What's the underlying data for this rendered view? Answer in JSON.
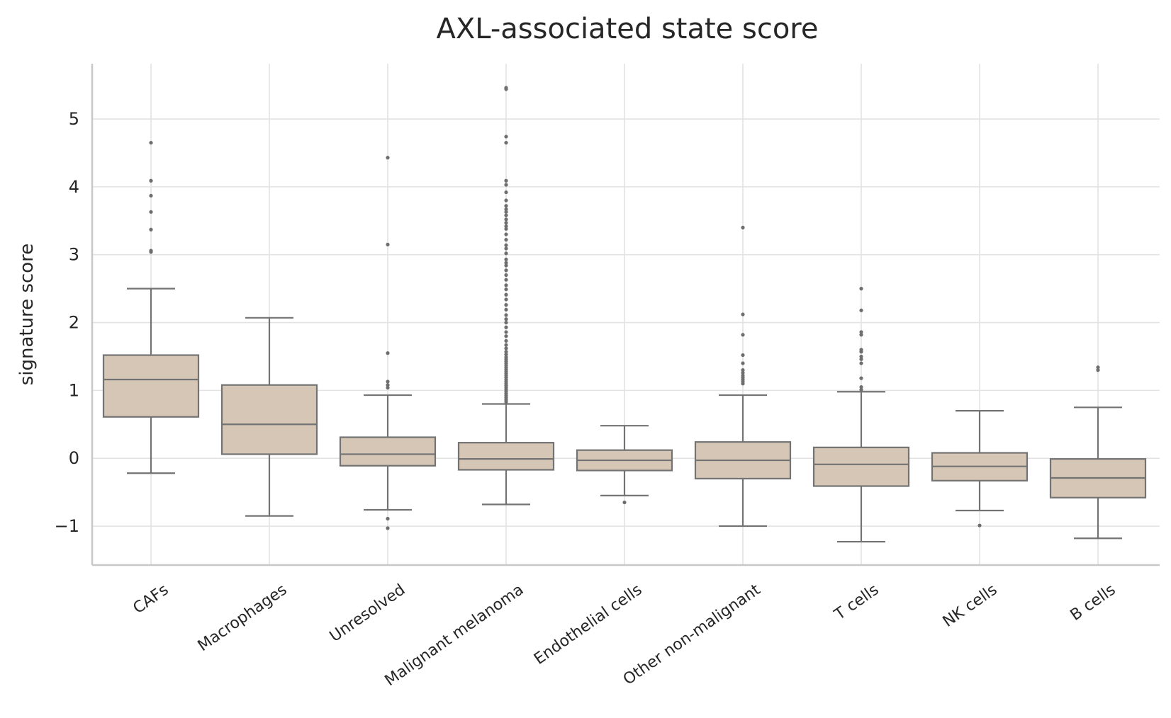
{
  "chart_data": {
    "type": "box",
    "title": "AXL-associated state score",
    "xlabel": "",
    "ylabel": "signature score",
    "ylim": [
      -1.55,
      5.8
    ],
    "yticks": [
      -1,
      0,
      1,
      2,
      3,
      4,
      5
    ],
    "ytick_labels": [
      "−1",
      "0",
      "1",
      "2",
      "3",
      "4",
      "5"
    ],
    "grid": true,
    "colors": {
      "box_fill": "#d5c6b5",
      "box_edge": "#737373",
      "grid": "#e3e3e3",
      "axis": "#c8c8c8",
      "flier": "#6e6e6e"
    },
    "categories": [
      "CAFs",
      "Macrophages",
      "Unresolved",
      "Malignant melanoma",
      "Endothelial cells",
      "Other non-malignant",
      "T cells",
      "NK cells",
      "B cells"
    ],
    "boxes": [
      {
        "category": "CAFs",
        "whislo": -0.22,
        "q1": 0.61,
        "med": 1.16,
        "q3": 1.52,
        "whishi": 2.5,
        "fliers": [
          4.65,
          4.09,
          3.87,
          3.63,
          3.37,
          3.06,
          3.04
        ]
      },
      {
        "category": "Macrophages",
        "whislo": -0.85,
        "q1": 0.06,
        "med": 0.5,
        "q3": 1.08,
        "whishi": 2.07,
        "fliers": []
      },
      {
        "category": "Unresolved",
        "whislo": -0.76,
        "q1": -0.11,
        "med": 0.06,
        "q3": 0.31,
        "whishi": 0.93,
        "fliers": [
          4.43,
          3.15,
          1.55,
          1.13,
          1.08,
          1.04,
          -0.89,
          -1.03
        ]
      },
      {
        "category": "Malignant melanoma",
        "whislo": -0.68,
        "q1": -0.17,
        "med": -0.01,
        "q3": 0.23,
        "whishi": 0.8,
        "fliers": [
          5.46,
          5.44,
          4.74,
          4.65,
          4.09,
          4.03,
          3.92,
          3.8,
          3.72,
          3.67,
          3.63,
          3.58,
          3.52,
          3.47,
          3.42,
          3.38,
          3.3,
          3.22,
          3.14,
          3.09,
          3.02,
          2.93,
          2.88,
          2.84,
          2.77,
          2.7,
          2.63,
          2.55,
          2.49,
          2.41,
          2.34,
          2.26,
          2.19,
          2.11,
          2.05,
          2.0,
          1.93,
          1.86,
          1.8,
          1.73,
          1.67,
          1.62,
          1.57,
          1.53,
          1.49,
          1.46,
          1.43,
          1.4,
          1.37,
          1.34,
          1.31,
          1.28,
          1.25,
          1.22,
          1.19,
          1.16,
          1.13,
          1.1,
          1.07,
          1.04,
          1.01,
          0.98,
          0.95,
          0.92,
          0.89,
          0.86,
          0.83
        ]
      },
      {
        "category": "Endothelial cells",
        "whislo": -0.55,
        "q1": -0.18,
        "med": -0.03,
        "q3": 0.12,
        "whishi": 0.48,
        "fliers": [
          -0.65
        ]
      },
      {
        "category": "Other non-malignant",
        "whislo": -1.0,
        "q1": -0.3,
        "med": -0.03,
        "q3": 0.24,
        "whishi": 0.93,
        "fliers": [
          3.4,
          2.12,
          1.82,
          1.52,
          1.4,
          1.3,
          1.26,
          1.22,
          1.19,
          1.16,
          1.13,
          1.1
        ]
      },
      {
        "category": "T cells",
        "whislo": -1.23,
        "q1": -0.41,
        "med": -0.09,
        "q3": 0.16,
        "whishi": 0.98,
        "fliers": [
          2.5,
          2.18,
          1.86,
          1.82,
          1.6,
          1.57,
          1.5,
          1.46,
          1.4,
          1.18,
          1.05,
          1.01
        ]
      },
      {
        "category": "NK cells",
        "whislo": -0.77,
        "q1": -0.33,
        "med": -0.12,
        "q3": 0.08,
        "whishi": 0.7,
        "fliers": [
          -0.99
        ]
      },
      {
        "category": "B cells",
        "whislo": -1.18,
        "q1": -0.58,
        "med": -0.29,
        "q3": -0.01,
        "whishi": 0.75,
        "fliers": [
          1.34,
          1.3
        ]
      }
    ]
  }
}
